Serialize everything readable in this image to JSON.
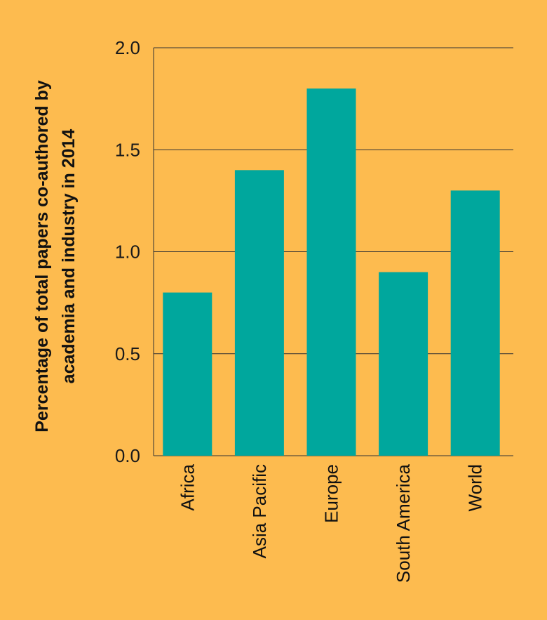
{
  "chart_data": {
    "type": "bar",
    "title": "",
    "xlabel": "",
    "ylabel": [
      "Percentage of total papers co-authored by",
      "academia and industry in 2014"
    ],
    "categories": [
      "Africa",
      "Asia Pacific",
      "Europe",
      "South America",
      "World"
    ],
    "values": [
      0.8,
      1.4,
      1.8,
      0.9,
      1.3
    ],
    "ylim": [
      0,
      2.0
    ],
    "yticks": [
      "0.0",
      "0.5",
      "1.0",
      "1.5",
      "2.0"
    ],
    "grid": true,
    "colors": {
      "background": "#FDBB4F",
      "bar": "#00A79D",
      "grid": "#333333"
    }
  }
}
